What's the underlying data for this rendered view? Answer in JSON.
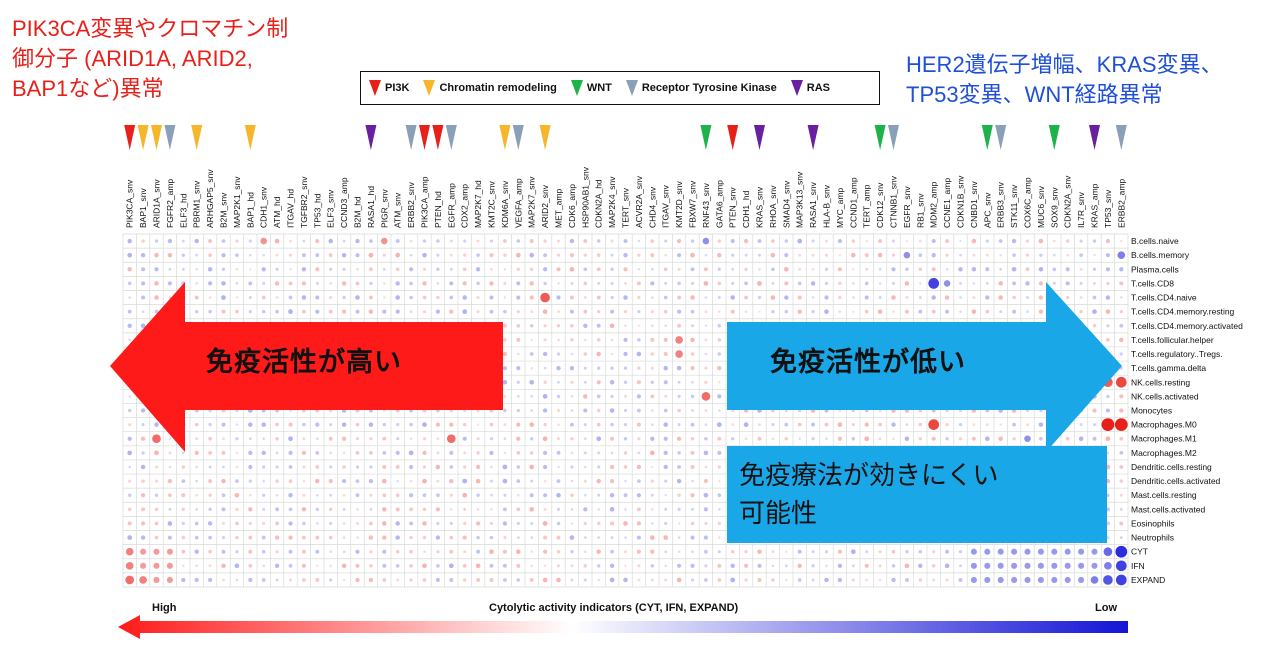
{
  "annotations": {
    "left_note": "PIK3CA変異やクロマチン制\n御分子 (ARID1A, ARID2,\nBAP1など)異常",
    "right_note": "HER2遺伝子増幅、KRAS変異、\nTP53変異、WNT経路異常",
    "left_arrow_text": "免疫活性が高い",
    "right_arrow_text": "免疫活性が低い",
    "caption": "免疫療法が効きにくい\n可能性"
  },
  "legend": [
    {
      "label": "PI3K",
      "color": "#e8201a"
    },
    {
      "label": "Chromatin remodeling",
      "color": "#f5b62a"
    },
    {
      "label": "WNT",
      "color": "#1db34a"
    },
    {
      "label": "Receptor Tyrosine Kinase",
      "color": "#8aa0b8"
    },
    {
      "label": "RAS",
      "color": "#6a1f9e"
    }
  ],
  "colors": {
    "high": "#e8201a",
    "low": "#1a1adb",
    "arrow_left": "#ff1a1a",
    "arrow_right": "#1aa7e8"
  },
  "genes": [
    {
      "name": "PIK3CA_snv",
      "mark": "PI3K"
    },
    {
      "name": "BAP1_snv",
      "mark": "Chromatin remodeling"
    },
    {
      "name": "ARID1A_snv",
      "mark": "Chromatin remodeling"
    },
    {
      "name": "FGFR2_amp",
      "mark": "Receptor Tyrosine Kinase"
    },
    {
      "name": "ELF3_hd",
      "mark": ""
    },
    {
      "name": "PBRM1_snv",
      "mark": "Chromatin remodeling"
    },
    {
      "name": "ARHGAP5_snv",
      "mark": ""
    },
    {
      "name": "B2M_snv",
      "mark": ""
    },
    {
      "name": "MAP2K1_snv",
      "mark": ""
    },
    {
      "name": "BAP1_hd",
      "mark": "Chromatin remodeling"
    },
    {
      "name": "CDH1_snv",
      "mark": ""
    },
    {
      "name": "ATM_hd",
      "mark": ""
    },
    {
      "name": "ITGAV_hd",
      "mark": ""
    },
    {
      "name": "TGFBR2_snv",
      "mark": ""
    },
    {
      "name": "TP53_hd",
      "mark": ""
    },
    {
      "name": "ELF3_snv",
      "mark": ""
    },
    {
      "name": "CCND3_amp",
      "mark": ""
    },
    {
      "name": "B2M_hd",
      "mark": ""
    },
    {
      "name": "RASA1_hd",
      "mark": "RAS"
    },
    {
      "name": "PIGR_snv",
      "mark": ""
    },
    {
      "name": "ATM_snv",
      "mark": ""
    },
    {
      "name": "ERBB2_snv",
      "mark": "Receptor Tyrosine Kinase"
    },
    {
      "name": "PIK3CA_amp",
      "mark": "PI3K"
    },
    {
      "name": "PTEN_hd",
      "mark": "PI3K"
    },
    {
      "name": "EGFR_amp",
      "mark": "Receptor Tyrosine Kinase"
    },
    {
      "name": "CDX2_amp",
      "mark": ""
    },
    {
      "name": "MAP2K7_hd",
      "mark": ""
    },
    {
      "name": "KMT2C_snv",
      "mark": ""
    },
    {
      "name": "KDM6A_snv",
      "mark": "Chromatin remodeling"
    },
    {
      "name": "VEGFA_amp",
      "mark": "Receptor Tyrosine Kinase"
    },
    {
      "name": "MAP2K7_snv",
      "mark": ""
    },
    {
      "name": "ARID2_snv",
      "mark": "Chromatin remodeling"
    },
    {
      "name": "MET_amp",
      "mark": ""
    },
    {
      "name": "CDK6_amp",
      "mark": ""
    },
    {
      "name": "HSP90AB1_snv",
      "mark": ""
    },
    {
      "name": "CDKN2A_hd",
      "mark": ""
    },
    {
      "name": "MAP2K4_snv",
      "mark": ""
    },
    {
      "name": "TERT_snv",
      "mark": ""
    },
    {
      "name": "ACVR2A_snv",
      "mark": ""
    },
    {
      "name": "CHD4_snv",
      "mark": ""
    },
    {
      "name": "ITGAV_snv",
      "mark": ""
    },
    {
      "name": "KMT2D_snv",
      "mark": ""
    },
    {
      "name": "FBXW7_snv",
      "mark": ""
    },
    {
      "name": "RNF43_snv",
      "mark": "WNT"
    },
    {
      "name": "GATA6_amp",
      "mark": ""
    },
    {
      "name": "PTEN_snv",
      "mark": "PI3K"
    },
    {
      "name": "CDH1_hd",
      "mark": ""
    },
    {
      "name": "KRAS_snv",
      "mark": "RAS"
    },
    {
      "name": "RHOA_snv",
      "mark": ""
    },
    {
      "name": "SMAD4_snv",
      "mark": ""
    },
    {
      "name": "MAP3K13_snv",
      "mark": ""
    },
    {
      "name": "RASA1_snv",
      "mark": "RAS"
    },
    {
      "name": "HLA-B_snv",
      "mark": ""
    },
    {
      "name": "MYC_amp",
      "mark": ""
    },
    {
      "name": "CCND1_amp",
      "mark": ""
    },
    {
      "name": "TERT_amp",
      "mark": ""
    },
    {
      "name": "CDK12_snv",
      "mark": "WNT"
    },
    {
      "name": "CTNNB1_snv",
      "mark": "Receptor Tyrosine Kinase"
    },
    {
      "name": "EGFR_snv",
      "mark": ""
    },
    {
      "name": "RB1_snv",
      "mark": ""
    },
    {
      "name": "MDM2_amp",
      "mark": ""
    },
    {
      "name": "CCNE1_amp",
      "mark": ""
    },
    {
      "name": "CDKN1B_snv",
      "mark": ""
    },
    {
      "name": "CNBD1_snv",
      "mark": ""
    },
    {
      "name": "APC_snv",
      "mark": "WNT"
    },
    {
      "name": "ERBB3_snv",
      "mark": "Receptor Tyrosine Kinase"
    },
    {
      "name": "STK11_snv",
      "mark": ""
    },
    {
      "name": "COX6C_amp",
      "mark": ""
    },
    {
      "name": "MUC6_snv",
      "mark": ""
    },
    {
      "name": "SOX9_snv",
      "mark": "WNT"
    },
    {
      "name": "CDKN2A_snv",
      "mark": ""
    },
    {
      "name": "IL7R_snv",
      "mark": ""
    },
    {
      "name": "KRAS_amp",
      "mark": "RAS"
    },
    {
      "name": "TP53_snv",
      "mark": ""
    },
    {
      "name": "ERBB2_amp",
      "mark": "Receptor Tyrosine Kinase"
    }
  ],
  "rows": [
    "B.cells.naive",
    "B.cells.memory",
    "Plasma.cells",
    "T.cells.CD8",
    "T.cells.CD4.naive",
    "T.cells.CD4.memory.resting",
    "T.cells.CD4.memory.activated",
    "T.cells.follicular.helper",
    "T.cells.regulatory..Tregs.",
    "T.cells.gamma.delta",
    "NK.cells.resting",
    "NK.cells.activated",
    "Monocytes",
    "Macrophages.M0",
    "Macrophages.M1",
    "Macrophages.M2",
    "Dendritic.cells.resting",
    "Dendritic.cells.activated",
    "Mast.cells.resting",
    "Mast.cells.activated",
    "Eosinophils",
    "Neutrophils",
    "CYT",
    "IFN",
    "EXPAND"
  ],
  "strong_cells": [
    {
      "r": 13,
      "c": 74,
      "v": 1.0
    },
    {
      "r": 13,
      "c": 73,
      "v": 1.0
    },
    {
      "r": 13,
      "c": 60,
      "v": 0.8
    },
    {
      "r": 10,
      "c": 74,
      "v": 0.8
    },
    {
      "r": 10,
      "c": 73,
      "v": 0.7
    },
    {
      "r": 3,
      "c": 60,
      "v": -0.8
    },
    {
      "r": 22,
      "c": 74,
      "v": -0.9
    },
    {
      "r": 23,
      "c": 74,
      "v": -0.8
    },
    {
      "r": 24,
      "c": 74,
      "v": -0.8
    },
    {
      "r": 24,
      "c": 73,
      "v": -0.7
    },
    {
      "r": 4,
      "c": 31,
      "v": 0.7
    },
    {
      "r": 14,
      "c": 2,
      "v": 0.6
    },
    {
      "r": 14,
      "c": 24,
      "v": 0.6
    },
    {
      "r": 11,
      "c": 43,
      "v": 0.6
    },
    {
      "r": 0,
      "c": 10,
      "v": 0.4
    },
    {
      "r": 0,
      "c": 19,
      "v": 0.4
    },
    {
      "r": 0,
      "c": 43,
      "v": -0.4
    },
    {
      "r": 1,
      "c": 58,
      "v": -0.4
    },
    {
      "r": 1,
      "c": 74,
      "v": -0.5
    },
    {
      "r": 3,
      "c": 61,
      "v": -0.4
    },
    {
      "r": 7,
      "c": 41,
      "v": 0.5
    },
    {
      "r": 8,
      "c": 41,
      "v": 0.5
    },
    {
      "r": 14,
      "c": 67,
      "v": -0.4
    },
    {
      "r": 22,
      "c": 0,
      "v": 0.5
    },
    {
      "r": 23,
      "c": 0,
      "v": 0.5
    },
    {
      "r": 24,
      "c": 0,
      "v": 0.6
    },
    {
      "r": 24,
      "c": 1,
      "v": 0.5
    },
    {
      "r": 22,
      "c": 73,
      "v": -0.6
    },
    {
      "r": 23,
      "c": 73,
      "v": -0.5
    },
    {
      "r": 24,
      "c": 72,
      "v": -0.5
    }
  ],
  "bar": {
    "high_label": "High",
    "title": "Cytolytic activity indicators (CYT, IFN, EXPAND)",
    "low_label": "Low"
  }
}
